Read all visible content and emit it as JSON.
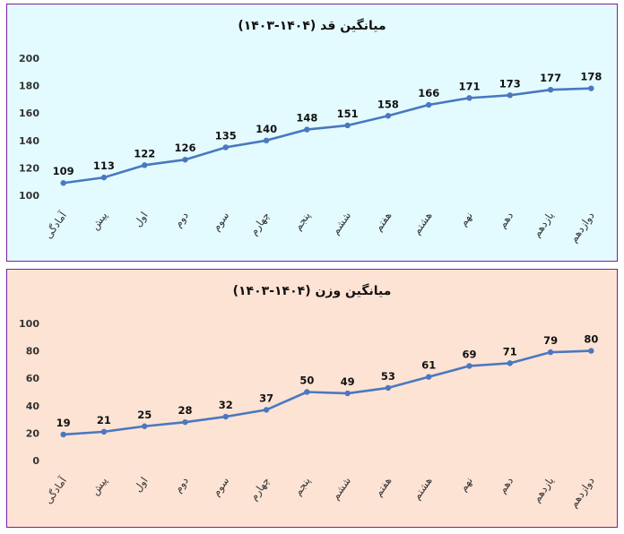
{
  "chart_data": [
    {
      "type": "line",
      "title": "میانگین قد (۱۴۰۴-۱۴۰۳)",
      "categories": [
        "آمادگی",
        "پیش",
        "اول",
        "دوم",
        "سوم",
        "چهارم",
        "پنجم",
        "ششم",
        "هفتم",
        "هشتم",
        "نهم",
        "دهم",
        "یازدهم",
        "دوازدهم"
      ],
      "values": [
        109,
        113,
        122,
        126,
        135,
        140,
        148,
        151,
        158,
        166,
        171,
        173,
        177,
        178
      ],
      "ylim": [
        100,
        200
      ],
      "yticks": [
        100,
        120,
        140,
        160,
        180,
        200
      ],
      "xlabel": "",
      "ylabel": "",
      "grid": false,
      "line_color": "#4a78c0",
      "background": "#e3fbff"
    },
    {
      "type": "line",
      "title": "میانگین وزن (۱۴۰۴-۱۴۰۳)",
      "categories": [
        "آمادگی",
        "پیش",
        "اول",
        "دوم",
        "سوم",
        "چهارم",
        "پنجم",
        "ششم",
        "هفتم",
        "هشتم",
        "نهم",
        "دهم",
        "یازدهم",
        "دوازدهم"
      ],
      "values": [
        19,
        21,
        25,
        28,
        32,
        37,
        50,
        49,
        53,
        61,
        69,
        71,
        79,
        80
      ],
      "ylim": [
        0,
        100
      ],
      "yticks": [
        0,
        20,
        40,
        60,
        80,
        100
      ],
      "xlabel": "",
      "ylabel": "",
      "grid": false,
      "line_color": "#4a78c0",
      "background": "#fde3d4"
    }
  ]
}
